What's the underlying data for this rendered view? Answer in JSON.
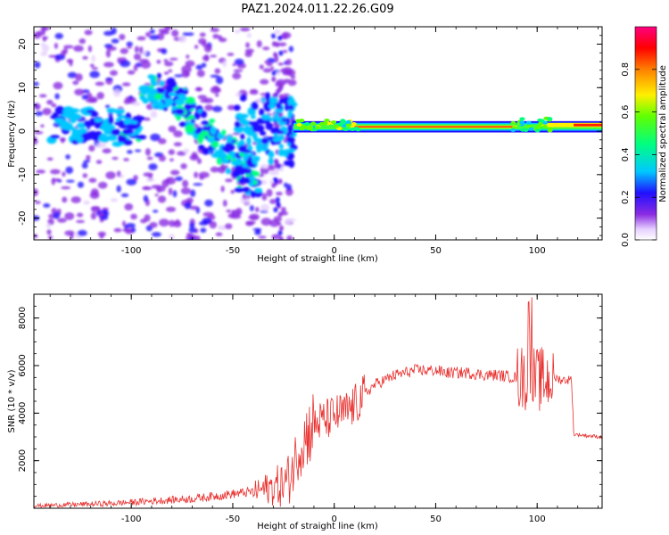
{
  "title": "PAZ1.2024.011.22.26.G09",
  "chart_data": [
    {
      "type": "heatmap",
      "xlabel": "Height of straight line (km)",
      "ylabel": "Frequency (Hz)",
      "xlim": [
        -148,
        132
      ],
      "ylim": [
        -25,
        24
      ],
      "xticks": [
        -100,
        -50,
        0,
        50,
        100
      ],
      "yticks": [
        20,
        10,
        0,
        -10,
        -20
      ],
      "colorbar": {
        "label": "Normalized spectral amplitude",
        "range": [
          0.0,
          1.0
        ],
        "ticks": [
          0.0,
          0.2,
          0.4,
          0.6,
          0.8
        ],
        "colormap": "white-purple-blue-cyan-green-yellow-orange-red-pink"
      },
      "features": [
        {
          "name": "scattered low-height signal",
          "x_range": [
            -148,
            -20
          ],
          "frequency_range": [
            -25,
            24
          ],
          "amplitude": "0.05-0.4"
        },
        {
          "name": "descending track",
          "points": [
            [
              -95,
              10
            ],
            [
              -80,
              8
            ],
            [
              -70,
              3
            ],
            [
              -60,
              -2
            ],
            [
              -48,
              -6
            ],
            [
              -40,
              -13
            ]
          ],
          "amplitude": "0.2-0.5"
        },
        {
          "name": "carrier line",
          "x_range": [
            -20,
            132
          ],
          "frequency": [
            0.5,
            1.5
          ],
          "amplitude": "0.6-1.0"
        }
      ]
    },
    {
      "type": "line",
      "xlabel": "Height of straight line (km)",
      "ylabel": "SNR (10 * v/v)",
      "xlim": [
        -148,
        132
      ],
      "ylim": [
        0,
        9000
      ],
      "xticks": [
        -100,
        -50,
        0,
        50,
        100
      ],
      "yticks": [
        2000,
        4000,
        6000,
        8000
      ],
      "color": "#e8302e",
      "series": [
        {
          "x": [
            -148,
            -130,
            -110,
            -90,
            -70,
            -60,
            -50,
            -45,
            -40,
            -35,
            -30,
            -25,
            -22,
            -20,
            -18,
            -15,
            -12,
            -10,
            -8,
            -5,
            -2,
            0,
            5,
            10,
            15,
            20,
            25,
            30,
            35,
            40,
            45,
            50,
            55,
            60,
            65,
            70,
            75,
            80,
            85,
            90,
            92,
            95,
            96,
            97,
            98,
            100,
            102,
            105,
            108,
            110,
            112,
            115,
            117,
            118,
            120,
            125,
            132
          ],
          "y": [
            100,
            150,
            200,
            300,
            400,
            500,
            600,
            650,
            700,
            800,
            900,
            1000,
            1300,
            1800,
            2400,
            2900,
            3300,
            3500,
            3600,
            3700,
            3800,
            3900,
            4000,
            4300,
            4800,
            5200,
            5400,
            5600,
            5700,
            5800,
            5800,
            5800,
            5700,
            5700,
            5700,
            5650,
            5600,
            5600,
            5550,
            5500,
            5500,
            5400,
            5400,
            5450,
            5400,
            5400,
            5400,
            5400,
            5500,
            5450,
            5400,
            5400,
            5400,
            3100,
            3100,
            3050,
            3000
          ]
        }
      ]
    }
  ]
}
